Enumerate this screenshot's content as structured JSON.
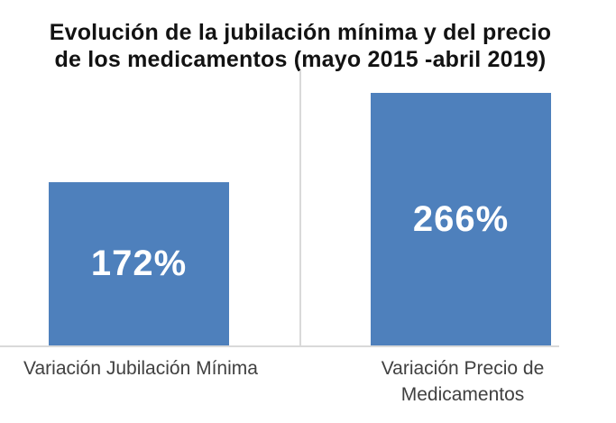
{
  "chart_data": {
    "type": "bar",
    "title": "Evolución de la jubilación mínima y del precio de los medicamentos (mayo 2015 -abril 2019)",
    "title_lines": [
      "Evolución de la jubilación mínima y del precio",
      "de los medicamentos (mayo 2015 -abril 2019)"
    ],
    "categories": [
      "Variación Jubilación Mínima",
      "Variación Precio de Medicamentos"
    ],
    "values": [
      172,
      266
    ],
    "value_labels": [
      "172%",
      "266%"
    ],
    "value_label_position": "center-of-bar",
    "xlabel": "",
    "ylabel": "",
    "ylim": [
      0,
      290
    ],
    "y_axis_visible": false,
    "grid": "vertical category divider only",
    "legend": "none"
  },
  "colors": {
    "background": "#FFFFFF",
    "bar": "#4E80BC",
    "value_label": "#FFFFFF",
    "title": "#121212",
    "category_label": "#404040",
    "gridline": "#D9D9D9"
  }
}
